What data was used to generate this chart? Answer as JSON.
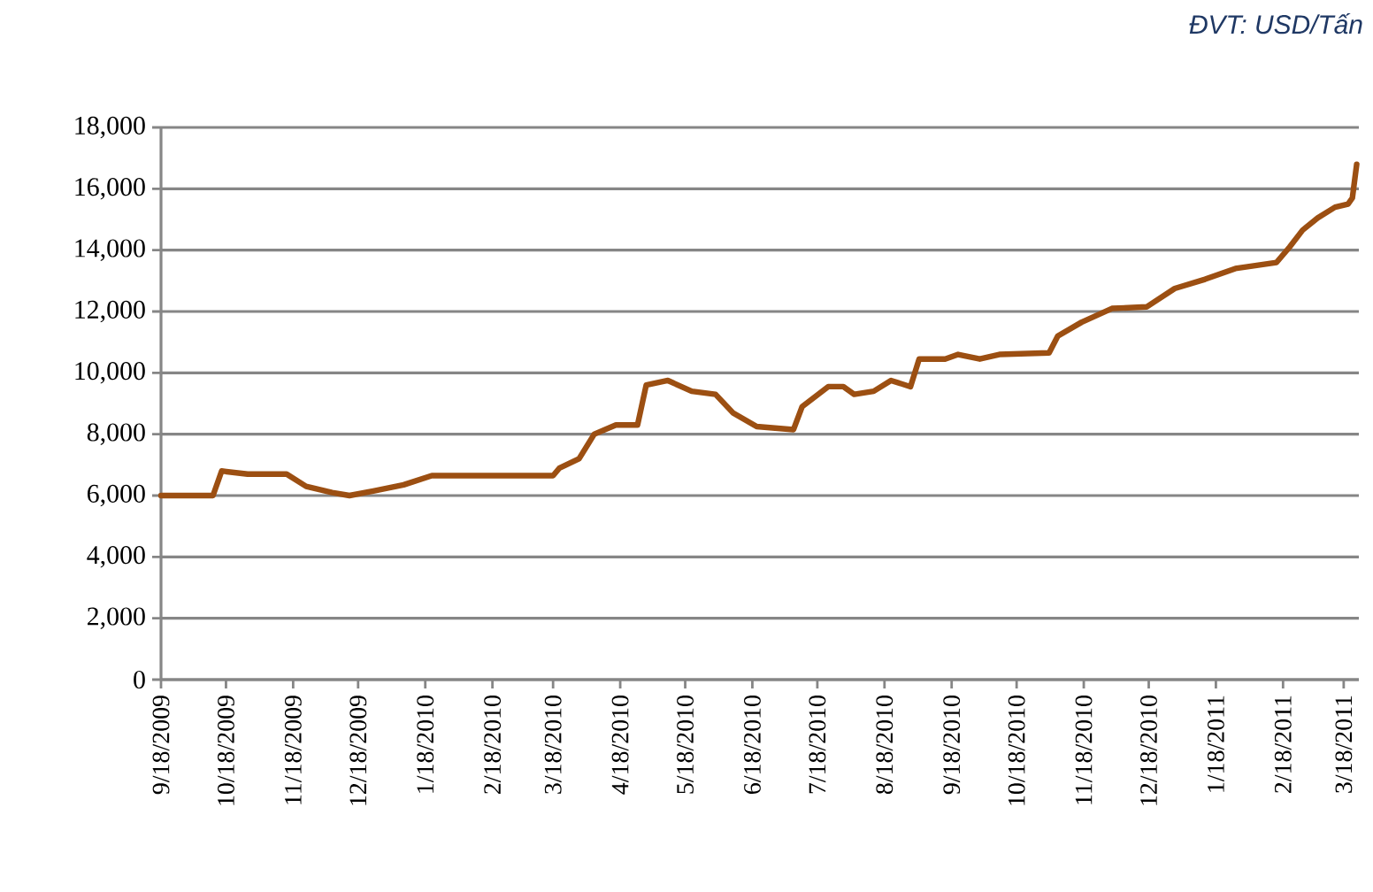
{
  "chart_data": {
    "type": "line",
    "annotations": [
      "ĐVT: USD/Tấn"
    ],
    "x": [
      "2009-09-18",
      "2009-10-12",
      "2009-10-16",
      "2009-10-28",
      "2009-11-15",
      "2009-11-24",
      "2009-12-06",
      "2009-12-14",
      "2009-12-25",
      "2010-01-08",
      "2010-01-21",
      "2010-03-18",
      "2010-03-21",
      "2010-03-30",
      "2010-04-06",
      "2010-04-16",
      "2010-04-26",
      "2010-04-30",
      "2010-05-10",
      "2010-05-21",
      "2010-06-01",
      "2010-06-09",
      "2010-06-20",
      "2010-07-07",
      "2010-07-11",
      "2010-07-23",
      "2010-07-30",
      "2010-08-04",
      "2010-08-13",
      "2010-08-21",
      "2010-08-30",
      "2010-09-03",
      "2010-09-15",
      "2010-09-21",
      "2010-10-01",
      "2010-10-10",
      "2010-11-02",
      "2010-11-06",
      "2010-11-17",
      "2010-12-01",
      "2010-12-17",
      "2010-12-30",
      "2011-01-13",
      "2011-01-27",
      "2011-02-15",
      "2011-02-21",
      "2011-02-27",
      "2011-03-06",
      "2011-03-14",
      "2011-03-20",
      "2011-03-22",
      "2011-03-24"
    ],
    "series": [
      {
        "color": "#9c4f12",
        "values": [
          6000,
          6000,
          6800,
          6700,
          6700,
          6300,
          6100,
          6000,
          6150,
          6350,
          6650,
          6650,
          6900,
          7200,
          8000,
          8300,
          8300,
          9600,
          9750,
          9400,
          9300,
          8700,
          8250,
          8150,
          8900,
          9550,
          9550,
          9300,
          9400,
          9750,
          9550,
          10450,
          10450,
          10600,
          10450,
          10600,
          10650,
          11200,
          11650,
          12100,
          12150,
          12750,
          13050,
          13400,
          13600,
          14100,
          14650,
          15050,
          15400,
          15500,
          15700,
          16800
        ]
      }
    ],
    "xlim": [
      "2009-09-18",
      "2011-03-25"
    ],
    "xticks": [
      {
        "value": "2009-09-18",
        "label": "9/18/2009"
      },
      {
        "value": "2009-10-18",
        "label": "10/18/2009"
      },
      {
        "value": "2009-11-18",
        "label": "11/18/2009"
      },
      {
        "value": "2009-12-18",
        "label": "12/18/2009"
      },
      {
        "value": "2010-01-18",
        "label": "1/18/2010"
      },
      {
        "value": "2010-02-18",
        "label": "2/18/2010"
      },
      {
        "value": "2010-03-18",
        "label": "3/18/2010"
      },
      {
        "value": "2010-04-18",
        "label": "4/18/2010"
      },
      {
        "value": "2010-05-18",
        "label": "5/18/2010"
      },
      {
        "value": "2010-06-18",
        "label": "6/18/2010"
      },
      {
        "value": "2010-07-18",
        "label": "7/18/2010"
      },
      {
        "value": "2010-08-18",
        "label": "8/18/2010"
      },
      {
        "value": "2010-09-18",
        "label": "9/18/2010"
      },
      {
        "value": "2010-10-18",
        "label": "10/18/2010"
      },
      {
        "value": "2010-11-18",
        "label": "11/18/2010"
      },
      {
        "value": "2010-12-18",
        "label": "12/18/2010"
      },
      {
        "value": "2011-01-18",
        "label": "1/18/2011"
      },
      {
        "value": "2011-02-18",
        "label": "2/18/2011"
      },
      {
        "value": "2011-03-18",
        "label": "3/18/2011"
      }
    ],
    "ylim": [
      0,
      18000
    ],
    "yticks": [
      0,
      {
        "value": 2000,
        "label": "2,000"
      },
      {
        "value": 4000,
        "label": "4,000"
      },
      {
        "value": 6000,
        "label": "6,000"
      },
      {
        "value": 8000,
        "label": "8,000"
      },
      {
        "value": 10000,
        "label": "10,000"
      },
      {
        "value": 12000,
        "label": "12,000"
      },
      {
        "value": 14000,
        "label": "14,000"
      },
      {
        "value": 16000,
        "label": "16,000"
      },
      {
        "value": 18000,
        "label": "18,000"
      }
    ],
    "grid": "y",
    "legend": false,
    "marker": "none",
    "line_style": "solid"
  }
}
